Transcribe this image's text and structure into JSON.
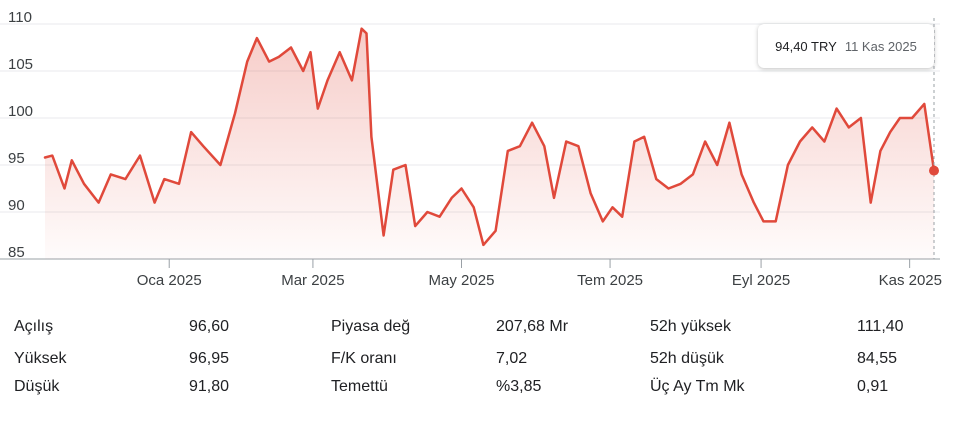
{
  "chart_data": {
    "type": "area",
    "y_ticks": [
      "110",
      "105",
      "100",
      "95",
      "90",
      "85"
    ],
    "ylim": [
      85,
      110
    ],
    "x_tick_labels": [
      "Oca 2025",
      "Mar 2025",
      "May 2025",
      "Tem 2025",
      "Eyl 2025",
      "Kas 2025"
    ],
    "x_range": [
      "2024-11-11",
      "2025-11-11"
    ],
    "x_tick_dates": [
      "2025-01-01",
      "2025-03-01",
      "2025-05-01",
      "2025-07-01",
      "2025-09-01",
      "2025-11-01"
    ],
    "series": [
      {
        "dates": [
          "2024-11-11",
          "2024-11-14",
          "2024-11-19",
          "2024-11-22",
          "2024-11-27",
          "2024-12-03",
          "2024-12-08",
          "2024-12-14",
          "2024-12-20",
          "2024-12-26",
          "2024-12-30",
          "2025-01-05",
          "2025-01-10",
          "2025-01-15",
          "2025-01-22",
          "2025-01-28",
          "2025-02-02",
          "2025-02-06",
          "2025-02-11",
          "2025-02-15",
          "2025-02-20",
          "2025-02-25",
          "2025-02-28",
          "2025-03-03",
          "2025-03-07",
          "2025-03-12",
          "2025-03-17",
          "2025-03-21",
          "2025-03-23",
          "2025-03-25",
          "2025-03-30",
          "2025-04-03",
          "2025-04-08",
          "2025-04-12",
          "2025-04-17",
          "2025-04-22",
          "2025-04-27",
          "2025-05-01",
          "2025-05-06",
          "2025-05-10",
          "2025-05-15",
          "2025-05-20",
          "2025-05-25",
          "2025-05-30",
          "2025-06-04",
          "2025-06-08",
          "2025-06-13",
          "2025-06-18",
          "2025-06-23",
          "2025-06-28",
          "2025-07-02",
          "2025-07-06",
          "2025-07-11",
          "2025-07-15",
          "2025-07-20",
          "2025-07-25",
          "2025-07-30",
          "2025-08-04",
          "2025-08-09",
          "2025-08-14",
          "2025-08-19",
          "2025-08-24",
          "2025-08-29",
          "2025-09-02",
          "2025-09-07",
          "2025-09-12",
          "2025-09-17",
          "2025-09-22",
          "2025-09-27",
          "2025-10-02",
          "2025-10-07",
          "2025-10-12",
          "2025-10-16",
          "2025-10-20",
          "2025-10-24",
          "2025-10-28",
          "2025-11-02",
          "2025-11-07",
          "2025-11-11"
        ],
        "values": [
          95.8,
          96.0,
          92.5,
          95.5,
          93.0,
          91.0,
          94.0,
          93.5,
          96.0,
          91.0,
          93.5,
          93.0,
          98.5,
          97.0,
          95.0,
          100.5,
          106.0,
          108.5,
          106.0,
          106.5,
          107.5,
          105.0,
          107.0,
          101.0,
          104.0,
          107.0,
          104.0,
          109.5,
          109.0,
          98.0,
          87.5,
          94.5,
          95.0,
          88.5,
          90.0,
          89.5,
          91.5,
          92.5,
          90.5,
          86.5,
          88.0,
          96.5,
          97.0,
          99.5,
          97.0,
          91.5,
          97.5,
          97.0,
          92.0,
          89.0,
          90.5,
          89.5,
          97.5,
          98.0,
          93.5,
          92.5,
          93.0,
          94.0,
          97.5,
          95.0,
          99.5,
          94.0,
          91.0,
          89.0,
          89.0,
          95.0,
          97.5,
          99.0,
          97.5,
          101.0,
          99.0,
          100.0,
          91.0,
          96.5,
          98.5,
          100.0,
          100.0,
          101.5,
          94.4
        ]
      }
    ],
    "line_color": "#e0493b",
    "fill_color": "#f8d8d4",
    "grid": true
  },
  "tooltip": {
    "price": "94,40 TRY",
    "date": "11 Kas 2025"
  },
  "stats": [
    [
      {
        "label": "Açılış",
        "value": "96,60"
      },
      {
        "label": "Piyasa değ",
        "value": "207,68 Mr"
      },
      {
        "label": "52h yüksek",
        "value": "111,40"
      }
    ],
    [
      {
        "label": "Yüksek",
        "value": "96,95"
      },
      {
        "label": "F/K oranı",
        "value": "7,02"
      },
      {
        "label": "52h düşük",
        "value": "84,55"
      }
    ],
    [
      {
        "label": "Düşük",
        "value": "91,80"
      },
      {
        "label": "Temettü",
        "value": "%3,85"
      },
      {
        "label": "Üç Ay Tm Mk",
        "value": "0,91"
      }
    ]
  ]
}
